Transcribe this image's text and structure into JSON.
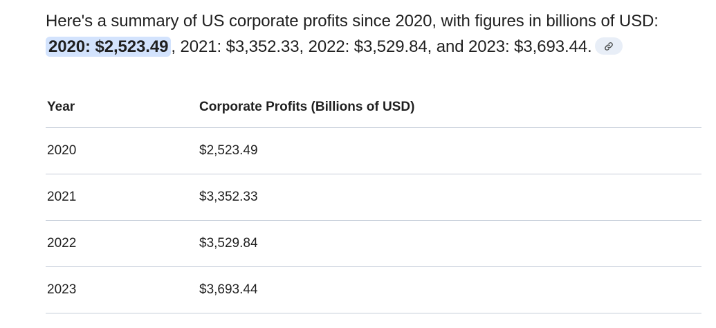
{
  "summary": {
    "text_before": "Here's a summary of US corporate profits since 2020, with figures in billions of USD: ",
    "highlight": "2020: $2,523.49",
    "text_after": ", 2021: $3,352.33, 2022: $3,529.84, and 2023: $3,693.44.",
    "citation_icon": "link-icon"
  },
  "table": {
    "headers": [
      "Year",
      "Corporate Profits (Billions of USD)"
    ],
    "rows": [
      [
        "2020",
        "$2,523.49"
      ],
      [
        "2021",
        "$3,352.33"
      ],
      [
        "2022",
        "$3,529.84"
      ],
      [
        "2023",
        "$3,693.44"
      ]
    ]
  },
  "colors": {
    "highlight_bg": "#d3e3fd",
    "chip_bg": "#e8eef7",
    "divider": "#c4ccd8",
    "text": "#1f1f1f"
  }
}
